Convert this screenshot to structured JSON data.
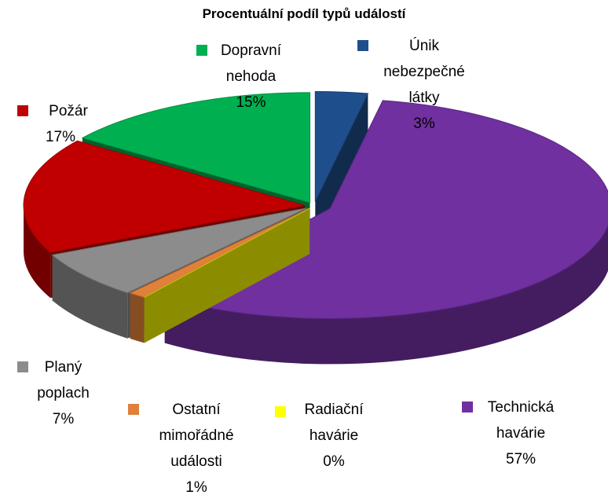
{
  "chart_data": {
    "type": "pie",
    "title": "Procentuální podíl typů událostí",
    "categories": [
      "Únik nebezpečné látky",
      "Technická havárie",
      "Radiační havárie",
      "Ostatní mimořádné události",
      "Planý poplach",
      "Požár",
      "Dopravní nehoda"
    ],
    "values": [
      3,
      57,
      0,
      1,
      7,
      17,
      15
    ],
    "value_labels": [
      "3%",
      "57%",
      "0%",
      "1%",
      "7%",
      "17%",
      "15%"
    ],
    "colors": [
      "#1f4e8c",
      "#7030a0",
      "#ffff00",
      "#e0803a",
      "#8c8c8c",
      "#c00000",
      "#00b050"
    ]
  }
}
